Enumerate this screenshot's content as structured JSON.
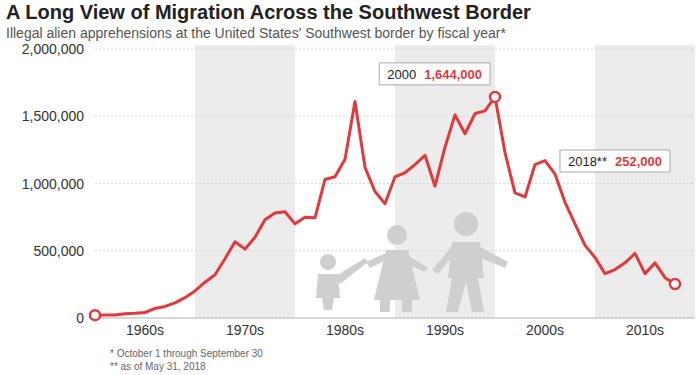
{
  "chart_data": {
    "type": "line",
    "title": "A Long View of Migration Across the Southwest Border",
    "subtitle": "Illegal alien apprehensions at the United States' Southwest border by fiscal year*",
    "footnotes": [
      "*   October 1 through September 30",
      "** as of May 31, 2018"
    ],
    "x": [
      1960,
      1961,
      1962,
      1963,
      1964,
      1965,
      1966,
      1967,
      1968,
      1969,
      1970,
      1971,
      1972,
      1973,
      1974,
      1975,
      1976,
      1977,
      1978,
      1979,
      1980,
      1981,
      1982,
      1983,
      1984,
      1985,
      1986,
      1987,
      1988,
      1989,
      1990,
      1991,
      1992,
      1993,
      1994,
      1995,
      1996,
      1997,
      1998,
      1999,
      2000,
      2001,
      2002,
      2003,
      2004,
      2005,
      2006,
      2007,
      2008,
      2009,
      2010,
      2011,
      2012,
      2013,
      2014,
      2015,
      2016,
      2017,
      2018
    ],
    "series": [
      {
        "name": "Illegal alien apprehensions",
        "color": "#e0393e",
        "values": [
          21000,
          23000,
          23000,
          31000,
          35000,
          41000,
          71000,
          86000,
          113000,
          151000,
          201000,
          266000,
          322000,
          441000,
          567000,
          512000,
          600000,
          730000,
          780000,
          790000,
          700000,
          750000,
          745000,
          1030000,
          1050000,
          1180000,
          1610000,
          1120000,
          940000,
          850000,
          1050000,
          1080000,
          1140000,
          1210000,
          980000,
          1270000,
          1510000,
          1370000,
          1520000,
          1540000,
          1644000,
          1230000,
          930000,
          900000,
          1140000,
          1170000,
          1070000,
          860000,
          700000,
          540000,
          450000,
          330000,
          360000,
          410000,
          480000,
          330000,
          410000,
          300000,
          252000
        ]
      }
    ],
    "xlim": [
      1960,
      2020
    ],
    "xticks": [
      {
        "value": 1965,
        "label": "1960s"
      },
      {
        "value": 1975,
        "label": "1970s"
      },
      {
        "value": 1985,
        "label": "1980s"
      },
      {
        "value": 1995,
        "label": "1990s"
      },
      {
        "value": 2005,
        "label": "2000s"
      },
      {
        "value": 2015,
        "label": "2010s"
      }
    ],
    "ylim": [
      0,
      2000000
    ],
    "yticks": [
      0,
      {
        "value": 500000,
        "label": "500,000"
      },
      {
        "value": 1000000,
        "label": "1,000,000"
      },
      {
        "value": 1500000,
        "label": "1,500,000"
      },
      {
        "value": 2000000,
        "label": "2,000,000"
      }
    ],
    "grid": true,
    "annotations": [
      {
        "x": 2000,
        "y": 1644000,
        "label": "2000",
        "value_label": "1,644,000"
      },
      {
        "x": 2018,
        "y": 252000,
        "label": "2018**",
        "value_label": "252,000"
      }
    ]
  }
}
